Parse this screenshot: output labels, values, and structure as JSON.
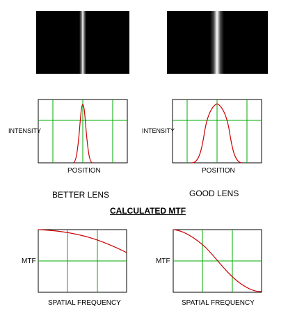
{
  "title": "CALCULATED MTF",
  "lenses": [
    {
      "caption": "BETTER LENS",
      "psf_ylabel": "INTENSITY",
      "psf_xlabel": "POSITION",
      "mtf_ylabel": "MTF",
      "mtf_xlabel": "SPATIAL FREQUENCY"
    },
    {
      "caption": "GOOD LENS",
      "psf_ylabel": "INTENSITY",
      "psf_xlabel": "POSITION",
      "mtf_ylabel": "MTF",
      "mtf_xlabel": "SPATIAL FREQUENCY"
    }
  ],
  "colors": {
    "background_image": "#000000",
    "grid": "#00aa00",
    "curve": "#cc0000",
    "frame": "#000000"
  }
}
